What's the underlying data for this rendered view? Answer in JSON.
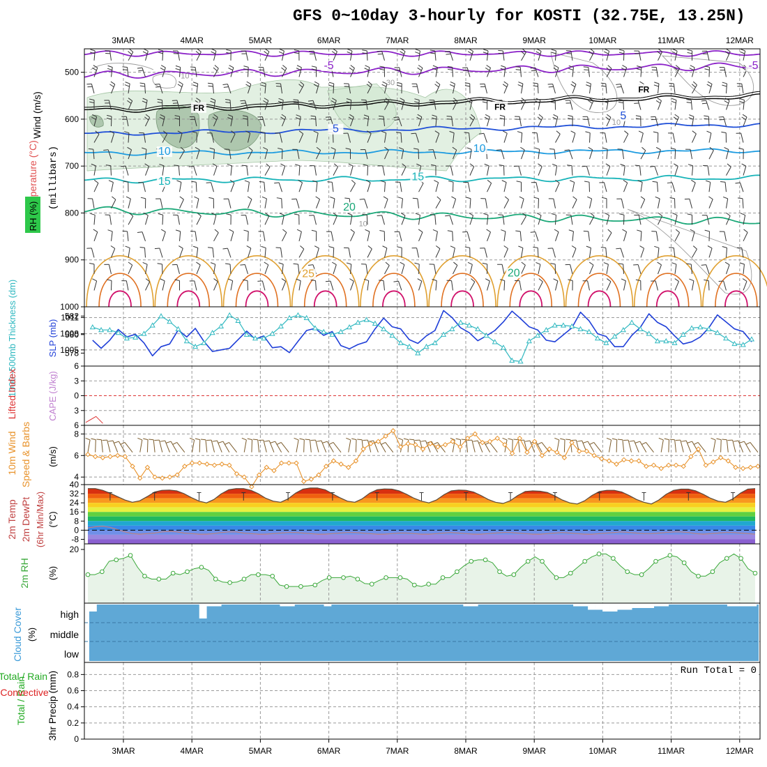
{
  "title": "GFS 0~10day 3-hourly for KOSTI (32.75E, 13.25N)",
  "days": [
    "3MAR",
    "4MAR",
    "5MAR",
    "6MAR",
    "7MAR",
    "8MAR",
    "9MAR",
    "10MAR",
    "11MAR",
    "12MAR"
  ],
  "colors": {
    "temp_purple": "#8b22c8",
    "freezing": "#000000",
    "blue5": "#1f4fd8",
    "blue10": "#1c9be0",
    "cyan15": "#16b3b8",
    "green20": "#1aa878",
    "orange25": "#e0a030",
    "orange30": "#e07020",
    "magenta35": "#d0106a",
    "rh": "#cfe6cf",
    "slp": "#1f3fd8",
    "thick": "#2fb8c0",
    "wind10": "#e8922a",
    "rh2m": "#3aa83a",
    "cloud": "#5fa8d6",
    "precip_total": "#22aa22",
    "precip_conv": "#dd2222"
  },
  "chart_data": [
    {
      "type": "heatmap",
      "panel": "upper-air",
      "ylabel_parts": [
        "Wind (m/s)",
        "Temperature (°C)",
        "RH (%)"
      ],
      "ylabel2": "(millibars)",
      "yticks": [
        500,
        600,
        700,
        800,
        900,
        1000
      ],
      "ylim": [
        1000,
        450
      ],
      "isotherm_labels": [
        {
          "text": "-5",
          "day": 3.0,
          "p": 493
        },
        {
          "text": "-5",
          "day": 9.2,
          "p": 493
        },
        {
          "text": "FR",
          "day": 1.1,
          "p": 582
        },
        {
          "text": "FR",
          "day": 5.5,
          "p": 580
        },
        {
          "text": "FR",
          "day": 7.6,
          "p": 543
        },
        {
          "text": "5",
          "day": 3.1,
          "p": 628
        },
        {
          "text": "5",
          "day": 7.3,
          "p": 600
        },
        {
          "text": "10",
          "day": 0.6,
          "p": 676
        },
        {
          "text": "10",
          "day": 5.2,
          "p": 670
        },
        {
          "text": "15",
          "day": 0.6,
          "p": 740
        },
        {
          "text": "15",
          "day": 4.3,
          "p": 730
        },
        {
          "text": "20",
          "day": 3.3,
          "p": 795
        },
        {
          "text": "20",
          "day": 5.7,
          "p": 935
        },
        {
          "text": "25",
          "day": 2.7,
          "p": 937
        }
      ],
      "rh_labels": [
        {
          "text": "10",
          "day": 0.9,
          "p": 513
        },
        {
          "text": "30",
          "day": 3.9,
          "p": 527
        },
        {
          "text": "10",
          "day": 7.2,
          "p": 612
        },
        {
          "text": "10",
          "day": 3.5,
          "p": 828
        }
      ]
    },
    {
      "type": "line",
      "panel": "slp-thickness",
      "ylabel_left": "1000~500mb Thickness (dm)",
      "ylabel_right": "SLP (mb)",
      "yticks_left": [
        578,
        580,
        582
      ],
      "yticks_right": [
        1005,
        1008,
        1011
      ],
      "x": [
        0,
        0.125,
        0.25,
        0.375,
        0.5,
        0.625,
        0.75,
        0.875,
        1,
        1.125,
        1.25,
        1.375,
        1.5,
        1.625,
        1.75,
        1.875,
        2,
        2.125,
        2.25,
        2.375,
        2.5,
        2.625,
        2.75,
        2.875,
        3,
        3.125,
        3.25,
        3.375,
        3.5,
        3.625,
        3.75,
        3.875,
        4,
        4.125,
        4.25,
        4.375,
        4.5,
        4.625,
        4.75,
        4.875,
        5,
        5.125,
        5.25,
        5.375,
        5.5,
        5.625,
        5.75,
        5.875,
        6,
        6.125,
        6.25,
        6.375,
        6.5,
        6.625,
        6.75,
        6.875,
        7,
        7.125,
        7.25,
        7.375,
        7.5,
        7.625,
        7.75,
        7.875,
        8,
        8.125,
        8.25,
        8.375,
        8.5,
        8.625,
        8.75,
        8.875,
        9,
        9.125,
        9.25,
        9.375,
        9.5,
        9.625,
        9.75,
        9.875,
        10
      ],
      "series": [
        {
          "name": "SLP (mb)",
          "values": [
            1006.8,
            1005.3,
            1006.8,
            1008.8,
            1007.4,
            1007.9,
            1006.3,
            1003.9,
            1005.6,
            1006.1,
            1008.7,
            1007.4,
            1009.0,
            1006.6,
            1004.7,
            1005.0,
            1005.3,
            1006.9,
            1008.5,
            1007.0,
            1007.6,
            1005.4,
            1005.6,
            1004.5,
            1006.6,
            1008.6,
            1009.0,
            1007.7,
            1008.4,
            1005.8,
            1005.2,
            1006.0,
            1006.5,
            1008.9,
            1010.9,
            1009.3,
            1008.9,
            1006.9,
            1006.2,
            1007.6,
            1008.6,
            1012.3,
            1011.0,
            1009.1,
            1008.2,
            1006.7,
            1007.6,
            1008.6,
            1010.2,
            1012.2,
            1010.8,
            1009.3,
            1008.7,
            1006.8,
            1006.5,
            1007.8,
            1009.1,
            1012.0,
            1010.4,
            1008.0,
            1007.5,
            1005.6,
            1005.6,
            1007.7,
            1009.2,
            1011.7,
            1010.1,
            1009.3,
            1007.6,
            1006.1,
            1006.5,
            1007.4,
            1009.1,
            1011.5,
            1010.2,
            1008.9,
            1008.4,
            1006.5,
            1007.3,
            1008.4,
            1010.4
          ]
        },
        {
          "name": "Thickness (dm)",
          "values": [
            580.8,
            580.5,
            580.5,
            580.2,
            579.6,
            579.7,
            580.1,
            581.0,
            582.0,
            581.4,
            580.6,
            579.3,
            578.7,
            579.1,
            580.2,
            580.9,
            582.1,
            581.5,
            580.0,
            579.6,
            579.6,
            580.1,
            580.9,
            581.8,
            582.1,
            581.8,
            580.7,
            580.3,
            580.0,
            580.3,
            580.8,
            581.3,
            581.6,
            581.2,
            580.6,
            579.9,
            579.1,
            578.7,
            578.0,
            578.7,
            579.1,
            580.0,
            580.6,
            581.3,
            581.0,
            580.6,
            579.9,
            579.2,
            578.6,
            577.2,
            577.1,
            579.3,
            579.9,
            580.5,
            581.0,
            581.0,
            580.9,
            580.6,
            580.3,
            579.6,
            579.1,
            579.8,
            580.5,
            581.3,
            580.6,
            580.1,
            579.3,
            579.3,
            579.1,
            580.0,
            580.7,
            580.8,
            580.6,
            580.2,
            579.6,
            579.0,
            578.9,
            579.5,
            580.6,
            581.0,
            579.5
          ]
        }
      ]
    },
    {
      "type": "line",
      "panel": "lifted-index-cape",
      "ylabel_left": "Lifted Index",
      "ylabel_right": "CAPE (J/kg)",
      "yticks": [
        -6,
        -3,
        0,
        3,
        6
      ],
      "yticklabels": [
        "6",
        "3",
        "0",
        "3",
        "6"
      ],
      "ylim": [
        -6,
        6
      ],
      "series": [
        {
          "name": "Lifted Index",
          "x": [
            0.0,
            0.15,
            0.25
          ],
          "values": [
            5.4,
            4.2,
            5.6
          ]
        }
      ]
    },
    {
      "type": "line",
      "panel": "wind10m",
      "ylabel_left": "10m Wind",
      "ylabel_sub": "Speed & Barbs",
      "ylabel2": "(m/s)",
      "yticks": [
        4,
        6,
        8
      ],
      "ylim": [
        3.3,
        8.8
      ],
      "series": [
        {
          "name": "10m Wind Speed",
          "values": [
            6.1,
            5.9,
            5.8,
            5.9,
            6.0,
            5.9,
            5.0,
            3.9,
            4.9,
            4.0,
            3.9,
            4.0,
            4.2,
            5.0,
            5.3,
            5.3,
            5.2,
            5.1,
            5.2,
            5.1,
            4.3,
            4.0,
            3.1,
            4.2,
            4.9,
            4.6,
            5.3,
            5.3,
            5.3,
            3.6,
            3.8,
            4.2,
            5.0,
            5.5,
            5.2,
            4.9,
            5.5,
            6.6,
            7.1,
            7.3,
            7.8,
            8.3,
            6.8,
            7.1,
            7.0,
            6.6,
            7.1,
            6.8,
            7.0,
            7.3,
            6.8,
            7.6,
            8.0,
            7.2,
            7.3,
            7.6,
            7.0,
            6.2,
            7.6,
            6.3,
            7.3,
            6.0,
            6.6,
            6.3,
            5.8,
            7.2,
            6.4,
            6.4,
            6.0,
            5.7,
            5.5,
            5.2,
            5.6,
            5.5,
            5.5,
            5.0,
            5.1,
            4.8,
            5.1,
            5.1,
            5.0,
            5.9,
            6.6,
            5.1,
            5.4,
            5.8,
            5.5,
            4.9,
            4.8,
            4.9,
            5.0
          ]
        }
      ]
    },
    {
      "type": "area",
      "panel": "temp2m",
      "ylabel_left": "2m Temp",
      "ylabel_sub": "2m DewPt",
      "ylabel_sub2": "(6hr Min/Max)",
      "ylabel2": "(°C)",
      "yticks": [
        -8,
        0,
        8,
        16,
        24,
        32,
        40
      ],
      "yticklabels": [
        "-8",
        "0",
        "8",
        "16",
        "24",
        "32",
        "40"
      ],
      "ylim": [
        -12,
        40
      ],
      "series": [
        {
          "name": "2m Temp",
          "values": [
            36.5,
            36.5,
            35.0,
            32.5,
            29.5,
            26.5,
            24.5,
            25.8,
            29.5,
            33.5,
            35.0,
            35.2,
            34.5,
            32.0,
            28.5,
            25.5,
            24.0,
            27.0,
            32.0,
            35.5,
            36.5,
            36.5,
            35.0,
            32.0,
            28.0,
            25.5,
            24.5,
            27.5,
            32.5,
            36.0,
            37.0,
            37.0,
            35.5,
            32.0,
            28.5,
            25.5,
            24.5,
            27.5,
            32.5,
            35.5,
            36.2,
            36.0,
            34.5,
            31.5,
            28.0,
            25.5,
            24.0,
            26.5,
            31.0,
            34.5,
            35.2,
            35.0,
            33.5,
            30.5,
            27.0,
            24.5,
            23.5,
            26.0,
            30.5,
            34.0,
            34.5,
            34.2,
            33.0,
            30.0,
            26.5,
            24.0,
            23.0,
            25.8,
            30.5,
            34.0,
            35.0,
            35.0,
            33.5,
            30.5,
            27.0,
            24.5,
            23.0,
            26.5,
            31.5,
            35.0,
            36.0,
            36.0,
            34.5,
            31.5,
            28.0,
            25.5,
            24.5,
            27.5,
            32.5,
            36.0,
            36.5
          ]
        },
        {
          "name": "2m DewPt",
          "values": [
            2.0,
            3.0,
            3.5,
            2.5,
            0.5,
            -1.5,
            -3.0,
            -3.5,
            -3.0,
            -2.5,
            -1.5,
            -1.0,
            -1.5,
            -2.5,
            -3.0,
            -3.5,
            -3.5,
            -3.0,
            -2.0,
            -1.5,
            -1.5,
            -2.5,
            -3.0,
            -3.5,
            -3.5,
            -3.0,
            -2.5,
            -2.0,
            -2.0,
            -2.5,
            -3.0,
            -3.5,
            -3.5,
            -3.0,
            -2.5,
            -2.0,
            -2.0,
            -2.5,
            -3.0,
            -3.5,
            -3.5,
            -3.0,
            -2.5,
            -2.5,
            -3.0,
            -3.5,
            -3.5,
            -3.0,
            -2.5,
            -2.0,
            -2.5,
            -3.0,
            -3.5,
            -3.5,
            -3.0,
            -2.5,
            -2.0,
            -2.0,
            -2.5,
            -3.0,
            -3.5,
            -3.5,
            -3.0,
            -2.5,
            -2.0,
            -2.5,
            -3.0,
            -3.5,
            -3.5,
            -3.0,
            -2.5,
            -2.0,
            -1.5,
            -2.0,
            -2.5,
            -3.0,
            -3.0,
            -2.5,
            -2.0,
            -1.5,
            -1.5,
            -2.0,
            -3.0,
            -3.5,
            -3.0,
            -2.5,
            -2.0,
            -2.0,
            -2.5,
            -3.0,
            -3.5
          ]
        }
      ]
    },
    {
      "type": "line",
      "panel": "rh2m",
      "ylabel_left": "2m RH",
      "ylabel2": "(%)",
      "yticks": [
        20
      ],
      "ylim": [
        0,
        20
      ],
      "series": [
        {
          "name": "2m RH",
          "values": [
            11.5,
            11.5,
            12.5,
            16.0,
            16.5,
            17.0,
            18.0,
            14.0,
            11.0,
            10.0,
            10.0,
            10.0,
            12.0,
            11.5,
            12.5,
            13.5,
            14.0,
            13.0,
            10.0,
            9.0,
            8.8,
            9.0,
            10.0,
            11.5,
            11.5,
            11.5,
            11.0,
            8.0,
            7.5,
            7.5,
            7.5,
            7.7,
            8.0,
            9.5,
            10.5,
            10.5,
            10.5,
            11.0,
            10.0,
            8.5,
            8.3,
            9.5,
            10.5,
            10.5,
            10.5,
            10.0,
            8.0,
            7.5,
            8.3,
            8.3,
            10.5,
            10.5,
            12.5,
            14.5,
            16.0,
            16.5,
            16.5,
            15.5,
            12.5,
            11.0,
            11.5,
            14.0,
            16.0,
            17.5,
            16.0,
            13.0,
            10.5,
            10.5,
            12.0,
            14.0,
            16.0,
            17.5,
            18.5,
            18.5,
            17.0,
            14.5,
            12.5,
            11.5,
            11.5,
            13.5,
            16.0,
            17.0,
            18.0,
            17.5,
            15.5,
            12.5,
            11.0,
            11.0,
            12.5,
            15.5,
            17.0,
            18.5,
            17.0,
            13.5,
            12.0
          ]
        }
      ]
    },
    {
      "type": "bar",
      "panel": "cloud-cover",
      "ylabel_left": "Cloud Cover",
      "ylabel2": "(%)",
      "yticklabels": [
        "high",
        "middle",
        "low"
      ],
      "series": [
        {
          "name": "high cloud",
          "values": [
            40,
            0,
            0,
            0,
            0,
            0,
            0,
            0,
            0,
            0,
            0,
            0,
            0,
            0,
            0,
            80,
            10,
            10,
            0,
            0,
            0,
            0,
            0,
            0,
            0,
            0,
            10,
            10,
            0,
            0,
            0,
            0,
            10,
            0,
            0,
            0,
            0,
            0,
            0,
            0,
            0,
            0,
            0,
            0,
            0,
            0,
            0,
            0,
            0,
            0,
            0,
            10,
            10,
            0,
            0,
            0,
            0,
            0,
            0,
            0,
            0,
            0,
            0,
            0,
            0,
            0,
            10,
            10,
            30,
            30,
            40,
            40,
            30,
            30,
            20,
            20,
            20,
            10,
            10,
            0,
            0,
            0,
            0,
            0,
            0,
            0,
            0,
            10,
            10,
            10,
            10
          ]
        }
      ]
    },
    {
      "type": "bar",
      "panel": "precip",
      "ylabel_left": "Total / Rain",
      "ylabel_sub": "Convective",
      "ylabel2": "3hr Precip (mm)",
      "yticks": [
        0,
        0.2,
        0.4,
        0.6,
        0.8
      ],
      "ylim": [
        0,
        0.95
      ],
      "annotation": "Run Total = 0",
      "series": [
        {
          "name": "Total",
          "values": []
        },
        {
          "name": "Convective",
          "values": []
        }
      ]
    }
  ]
}
